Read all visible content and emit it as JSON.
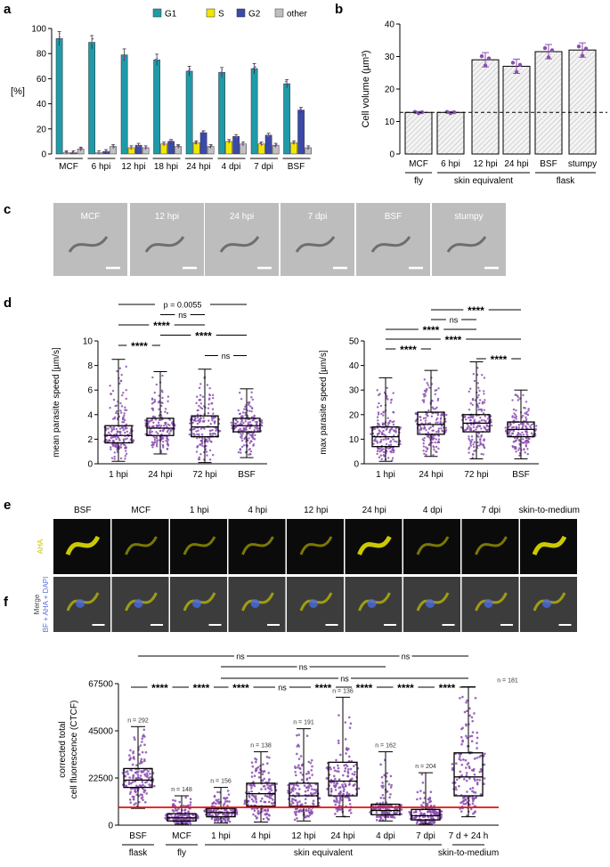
{
  "panel_letters": {
    "a": "a",
    "b": "b",
    "c": "c",
    "d": "d",
    "e": "e",
    "f": "f"
  },
  "colors": {
    "G1": "#1f9aa8",
    "S": "#f2e600",
    "G2": "#3b4aa8",
    "other": "#bfbfbf",
    "points": "#8a4fb0",
    "red_line": "#e01010",
    "hatch": "#cfcfcf"
  },
  "chart_data": [
    {
      "id": "a",
      "type": "bar",
      "ylabel": "[%]",
      "ylim": [
        0,
        100
      ],
      "yticks": [
        "0",
        "20",
        "40",
        "60",
        "80",
        "100"
      ],
      "categories": [
        "MCF",
        "6 hpi",
        "12 hpi",
        "18 hpi",
        "24 hpi",
        "4 dpi",
        "7 dpi",
        "BSF"
      ],
      "series": [
        {
          "name": "G1",
          "values": [
            92,
            89,
            79,
            75,
            66,
            65,
            68,
            56
          ]
        },
        {
          "name": "S",
          "values": [
            1,
            1,
            5,
            8,
            9,
            10,
            8,
            9
          ]
        },
        {
          "name": "G2",
          "values": [
            1,
            2,
            7,
            10,
            17,
            14,
            15,
            35
          ]
        },
        {
          "name": "other",
          "values": [
            4,
            6,
            5,
            6,
            6,
            8,
            7,
            5
          ]
        }
      ]
    },
    {
      "id": "b",
      "type": "bar",
      "ylabel": "Cell volume (µm³)",
      "ylim": [
        0,
        40
      ],
      "yticks": [
        "0",
        "10",
        "20",
        "30",
        "40"
      ],
      "categories": [
        "MCF",
        "6 hpi",
        "12 hpi",
        "24 hpi",
        "BSF",
        "stumpy"
      ],
      "values": [
        12.8,
        12.8,
        29,
        27,
        31.5,
        32
      ],
      "dashed_reference": 12.8,
      "groups": [
        {
          "label": "fly",
          "span": [
            0,
            0
          ]
        },
        {
          "label": "skin equivalent",
          "span": [
            1,
            3
          ]
        },
        {
          "label": "flask",
          "span": [
            4,
            5
          ]
        }
      ]
    },
    {
      "id": "d1",
      "type": "box",
      "ylabel": "mean parasite speed [µm/s]",
      "ylim": [
        0,
        10
      ],
      "yticks": [
        "0",
        "2",
        "4",
        "6",
        "8",
        "10"
      ],
      "categories": [
        "1 hpi",
        "24 hpi",
        "72 hpi",
        "BSF"
      ],
      "boxes": [
        {
          "min": 0.2,
          "q1": 1.7,
          "median": 2.3,
          "q3": 3.1,
          "max": 8.5
        },
        {
          "min": 0.8,
          "q1": 2.3,
          "median": 2.9,
          "q3": 3.7,
          "max": 7.5
        },
        {
          "min": 0.1,
          "q1": 2.2,
          "median": 3.0,
          "q3": 3.9,
          "max": 7.7
        },
        {
          "min": 0.5,
          "q1": 2.6,
          "median": 3.1,
          "q3": 3.7,
          "max": 6.1
        }
      ],
      "comparisons": [
        {
          "a": 0,
          "b": 3,
          "label": "p = 0.0055"
        },
        {
          "a": 1,
          "b": 2,
          "label": "ns"
        },
        {
          "a": 0,
          "b": 2,
          "label": "****"
        },
        {
          "a": 1,
          "b": 3,
          "label": "****"
        },
        {
          "a": 0,
          "b": 1,
          "label": "****"
        },
        {
          "a": 2,
          "b": 3,
          "label": "ns"
        }
      ]
    },
    {
      "id": "d2",
      "type": "box",
      "ylabel": "max parasite speed [µm/s]",
      "ylim": [
        0,
        50
      ],
      "yticks": [
        "0",
        "10",
        "20",
        "30",
        "40",
        "50"
      ],
      "categories": [
        "1 hpi",
        "24 hpi",
        "72 hpi",
        "BSF"
      ],
      "boxes": [
        {
          "min": 1,
          "q1": 7,
          "median": 11,
          "q3": 15,
          "max": 35
        },
        {
          "min": 3,
          "q1": 12,
          "median": 16,
          "q3": 21,
          "max": 38
        },
        {
          "min": 2,
          "q1": 13,
          "median": 16.5,
          "q3": 20,
          "max": 41.5
        },
        {
          "min": 2,
          "q1": 11,
          "median": 14,
          "q3": 17,
          "max": 30
        }
      ],
      "comparisons": [
        {
          "a": 1,
          "b": 3,
          "label": "****"
        },
        {
          "a": 1,
          "b": 2,
          "label": "ns"
        },
        {
          "a": 0,
          "b": 2,
          "label": "****"
        },
        {
          "a": 0,
          "b": 3,
          "label": "****"
        },
        {
          "a": 0,
          "b": 1,
          "label": "****"
        },
        {
          "a": 2,
          "b": 3,
          "label": "****"
        }
      ]
    },
    {
      "id": "f",
      "type": "box",
      "ylabel": "corrected total cell fluorescence (CTCF)",
      "ylabel_lines": [
        "corrected total",
        "cell fluorescence (CTCF)"
      ],
      "ylim": [
        0,
        67500
      ],
      "yticks": [
        "0",
        "22500",
        "45000",
        "67500"
      ],
      "red_line": 8500,
      "categories": [
        "BSF",
        "MCF",
        "1 hpi",
        "4 hpi",
        "12 hpi",
        "24 hpi",
        "4 dpi",
        "7 dpi",
        "7 d + 24 h"
      ],
      "n_labels": [
        "n = 292",
        "n = 148",
        "n = 156",
        "n = 138",
        "n = 191",
        "n = 136",
        "n = 162",
        "n = 204",
        "n = 181"
      ],
      "boxes": [
        {
          "min": 8000,
          "q1": 18000,
          "median": 21500,
          "q3": 27000,
          "max": 47000
        },
        {
          "min": 500,
          "q1": 2000,
          "median": 3500,
          "q3": 5500,
          "max": 14000
        },
        {
          "min": 1000,
          "q1": 4000,
          "median": 6000,
          "q3": 8000,
          "max": 18000
        },
        {
          "min": 1500,
          "q1": 9000,
          "median": 15000,
          "q3": 20000,
          "max": 35000
        },
        {
          "min": 2000,
          "q1": 9000,
          "median": 14000,
          "q3": 20000,
          "max": 46000
        },
        {
          "min": 4000,
          "q1": 14000,
          "median": 21000,
          "q3": 30000,
          "max": 61000
        },
        {
          "min": 2000,
          "q1": 5000,
          "median": 7000,
          "q3": 10000,
          "max": 35000
        },
        {
          "min": 500,
          "q1": 2500,
          "median": 4500,
          "q3": 7500,
          "max": 25000
        },
        {
          "min": 4000,
          "q1": 14000,
          "median": 23000,
          "q3": 34500,
          "max": 66000
        }
      ],
      "adjacent": [
        "****",
        "****",
        "****",
        "ns",
        "****",
        "****",
        "****",
        "****"
      ],
      "long_comparisons": [
        {
          "a": 0,
          "b": 5,
          "label": "ns"
        },
        {
          "a": 5,
          "b": 8,
          "label": "ns"
        },
        {
          "a": 2,
          "b": 6,
          "label": "ns"
        },
        {
          "a": 2,
          "b": 8,
          "label": "ns"
        }
      ],
      "groups": [
        {
          "label": "flask",
          "span": [
            0,
            0
          ]
        },
        {
          "label": "fly",
          "span": [
            1,
            1
          ]
        },
        {
          "label": "skin equivalent",
          "span": [
            2,
            7
          ]
        },
        {
          "label": "skin-to-medium",
          "span": [
            8,
            8
          ]
        }
      ]
    }
  ],
  "panel_c_labels": [
    "MCF",
    "12 hpi",
    "24 hpi",
    "7 dpi",
    "BSF",
    "stumpy"
  ],
  "panel_e": {
    "columns": [
      "BSF",
      "MCF",
      "1 hpi",
      "4 hpi",
      "12 hpi",
      "24 hpi",
      "4 dpi",
      "7 dpi",
      "skin-to-medium"
    ],
    "row1_label": "AHA",
    "row2_label_top": "Merge",
    "row2_label_bottom": "BF + AHA + DAPI"
  }
}
